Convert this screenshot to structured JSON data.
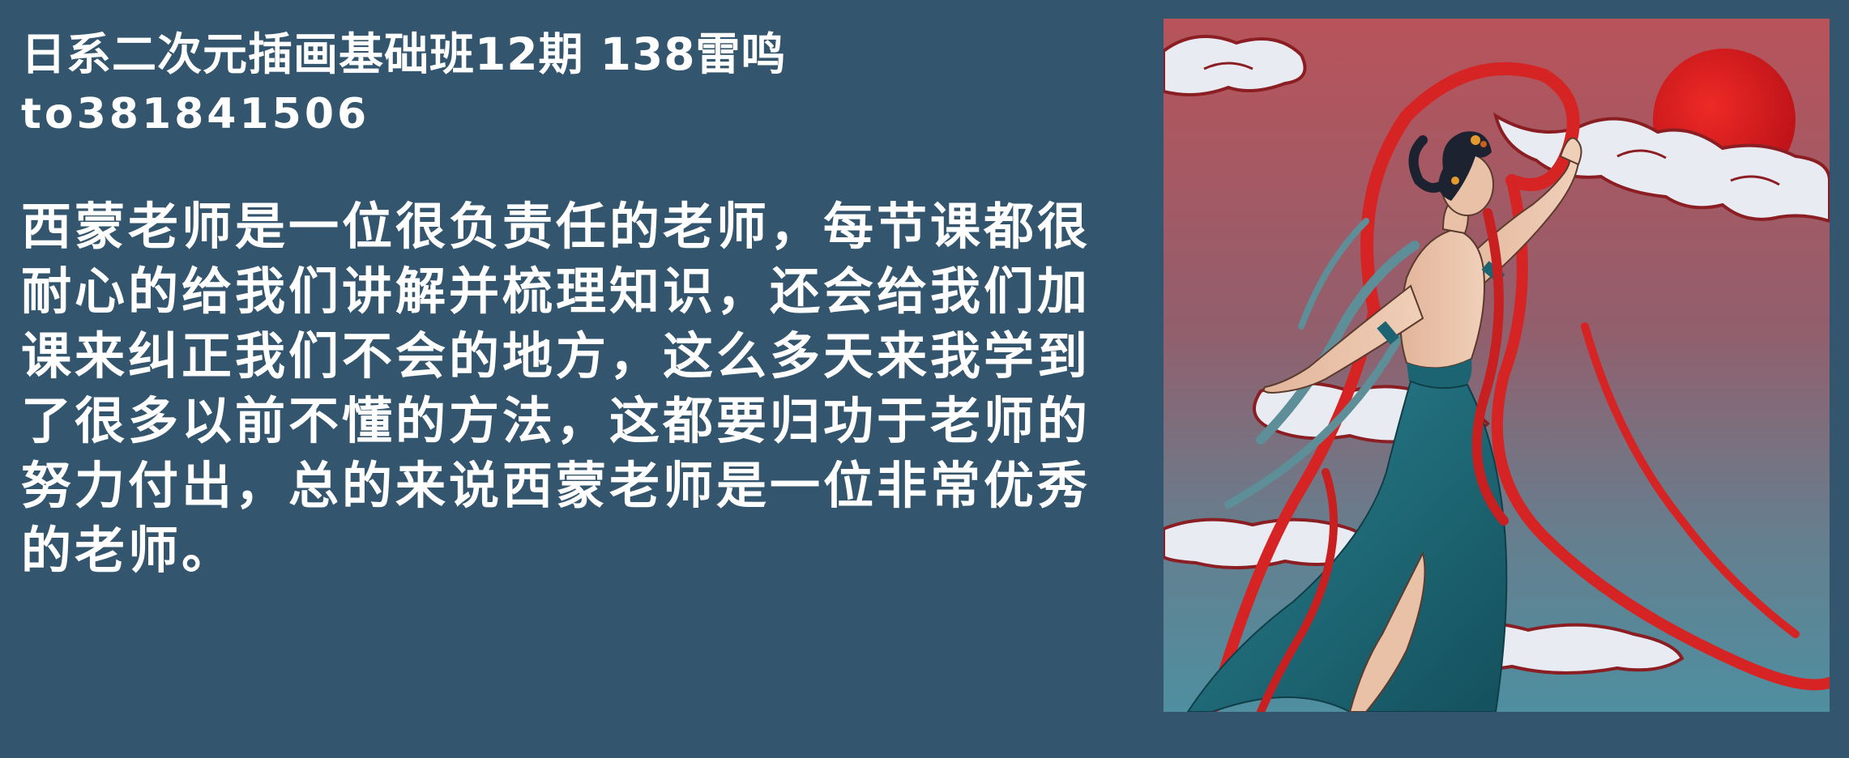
{
  "header": {
    "title": "日系二次元插画基础班12期 138雷鸣",
    "student_id": "to381841506"
  },
  "testimonial": {
    "text": "西蒙老师是一位很负责任的老师，每节课都很耐心的给我们讲解并梳理知识，还会给我们加课来纠正我们不会的地方，这么多天来我学到了很多以前不懂的方法，这都要归功于老师的努力付出，总的来说西蒙老师是一位非常优秀的老师。"
  },
  "artwork": {
    "colors": {
      "page_background": "#33566e",
      "sky_top": "#b8535a",
      "sky_bottom": "#4e8fa0",
      "sun": "#d81d1c",
      "ribbon": "#d62424",
      "dress": "#1d6473",
      "cloud": "#e9ebf3",
      "cloud_outline": "#8a1e22"
    }
  }
}
